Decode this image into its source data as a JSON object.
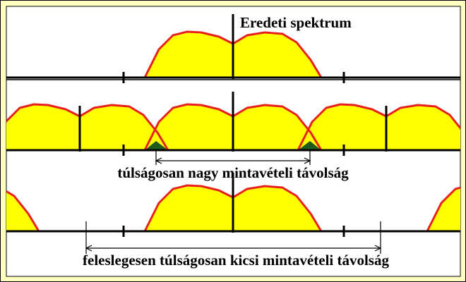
{
  "panels": [
    {
      "label": "Eredeti spektrum"
    },
    {
      "label": "túlságosan nagy mintavételi távolság"
    },
    {
      "label": "feleslegesen túlságosan kicsi mintavételi távolság"
    }
  ]
}
